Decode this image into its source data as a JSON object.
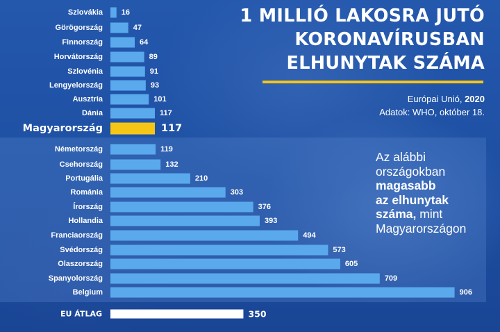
{
  "title_lines": [
    "1 MILLIÓ LAKOSRA JUTÓ",
    "KORONAVÍRUSBAN",
    "ELHUNYTAK SZÁMA"
  ],
  "source_line1_prefix": "Európai Unió, ",
  "source_line1_year": "2020",
  "source_line2": "Adatok: WHO, október 18.",
  "note": {
    "line1": "Az alábbi",
    "line2": "országokban",
    "bold1": "magasabb",
    "bold2": "az elhunytak",
    "bold3": "száma,",
    "tail1": " mint",
    "line_last": "Magyarországon"
  },
  "colors": {
    "bar": "#5aa9ec",
    "highlight": "#f6c617",
    "average": "#ffffff",
    "accent_line": "#f6c617"
  },
  "chart_data": {
    "type": "bar",
    "orientation": "horizontal",
    "title": "1 MILLIÓ LAKOSRA JUTÓ KORONAVÍRUSBAN ELHUNYTAK SZÁMA",
    "categories": [
      "Szlovákia",
      "Görögország",
      "Finnország",
      "Horvátország",
      "Szlovénia",
      "Lengyelország",
      "Ausztria",
      "Dánia",
      "Magyarország",
      "Németország",
      "Csehország",
      "Portugália",
      "Románia",
      "Írország",
      "Hollandia",
      "Franciaország",
      "Svédország",
      "Olaszország",
      "Spanyolország",
      "Belgium",
      "EU ÁTLAG"
    ],
    "values": [
      16,
      47,
      64,
      89,
      91,
      93,
      101,
      117,
      117,
      119,
      132,
      210,
      303,
      376,
      393,
      494,
      573,
      605,
      709,
      906,
      350
    ],
    "highlight": "Magyarország",
    "average_label": "EU ÁTLAG"
  }
}
